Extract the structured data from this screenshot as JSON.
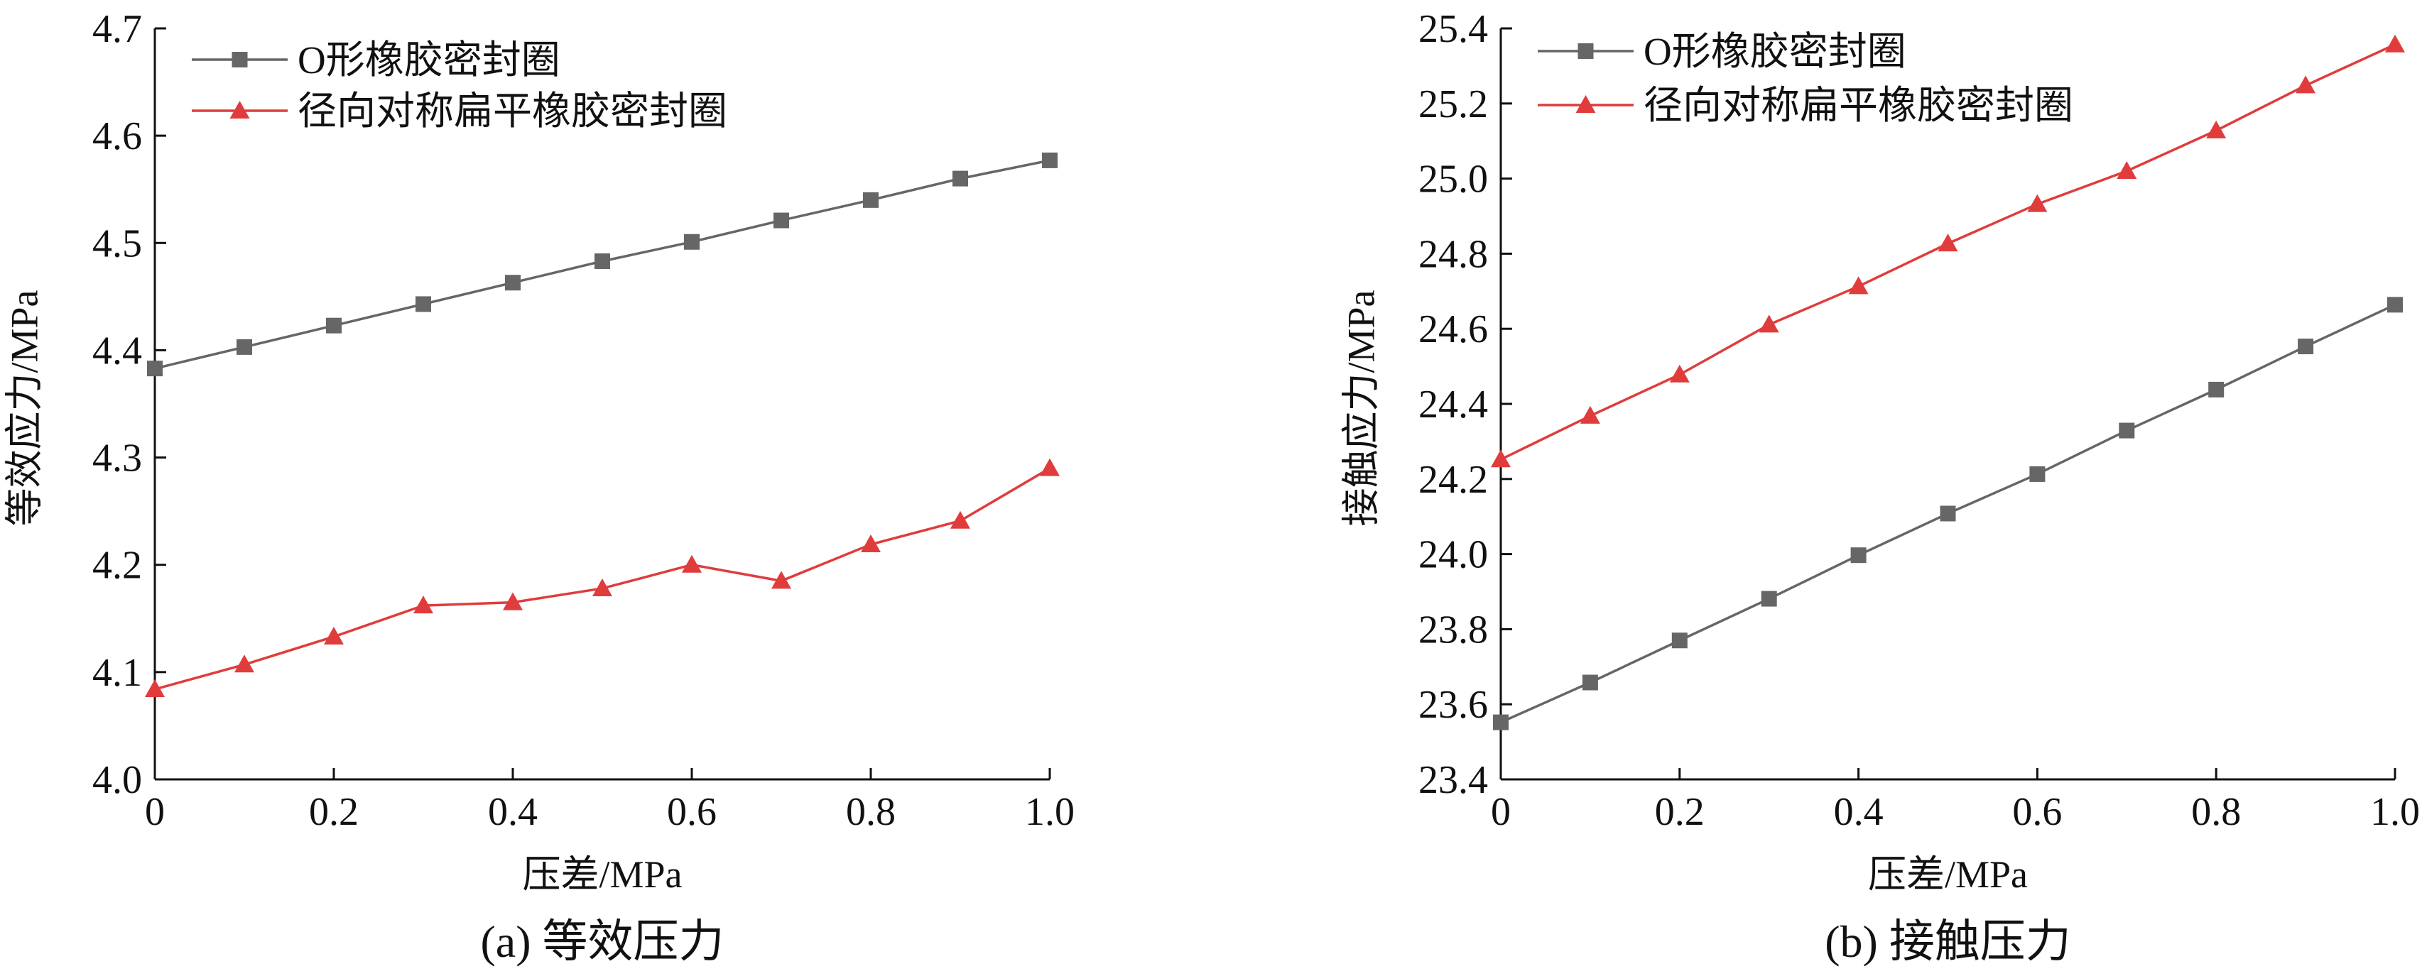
{
  "chart_data": [
    {
      "type": "line",
      "xlabel": "压差/MPa",
      "ylabel": "等效应力/MPa",
      "caption": "(a)  等效压力",
      "xlim": [
        0,
        1.0
      ],
      "ylim": [
        4.0,
        4.7
      ],
      "x_ticks": [
        "0",
        "0.2",
        "0.4",
        "0.6",
        "0.8",
        "1.0"
      ],
      "y_ticks": [
        "4.0",
        "4.1",
        "4.2",
        "4.3",
        "4.4",
        "4.5",
        "4.6",
        "4.7"
      ],
      "legend_position": "top-left",
      "grid": false,
      "x": [
        0,
        0.1,
        0.2,
        0.3,
        0.4,
        0.5,
        0.6,
        0.7,
        0.8,
        0.9,
        1.0
      ],
      "series": [
        {
          "name": "O形橡胶密封圈",
          "marker": "square",
          "color": "#666666",
          "values": [
            4.383,
            4.403,
            4.423,
            4.443,
            4.463,
            4.483,
            4.501,
            4.521,
            4.54,
            4.56,
            4.577
          ]
        },
        {
          "name": "径向对称扁平橡胶密封圈",
          "marker": "triangle",
          "color": "#e03c3c",
          "values": [
            4.084,
            4.107,
            4.133,
            4.162,
            4.165,
            4.178,
            4.2,
            4.185,
            4.219,
            4.241,
            4.29
          ]
        }
      ]
    },
    {
      "type": "line",
      "xlabel": "压差/MPa",
      "ylabel": "接触应力/MPa",
      "caption": "(b)  接触压力",
      "xlim": [
        0,
        1.0
      ],
      "ylim": [
        23.4,
        25.4
      ],
      "x_ticks": [
        "0",
        "0.2",
        "0.4",
        "0.6",
        "0.8",
        "1.0"
      ],
      "y_ticks": [
        "23.4",
        "23.6",
        "23.8",
        "24.0",
        "24.2",
        "24.4",
        "24.6",
        "24.8",
        "25.0",
        "25.2",
        "25.4"
      ],
      "legend_position": "top-left",
      "grid": false,
      "x": [
        0,
        0.1,
        0.2,
        0.3,
        0.4,
        0.5,
        0.6,
        0.7,
        0.8,
        0.9,
        1.0
      ],
      "series": [
        {
          "name": "O形橡胶密封圈",
          "marker": "square",
          "color": "#666666",
          "values": [
            23.552,
            23.658,
            23.77,
            23.881,
            23.997,
            24.108,
            24.213,
            24.329,
            24.438,
            24.553,
            24.664
          ]
        },
        {
          "name": "径向对称扁平橡胶密封圈",
          "marker": "triangle",
          "color": "#e03c3c",
          "values": [
            24.252,
            24.368,
            24.478,
            24.611,
            24.713,
            24.827,
            24.932,
            25.02,
            25.128,
            25.248,
            25.357
          ]
        }
      ]
    }
  ]
}
